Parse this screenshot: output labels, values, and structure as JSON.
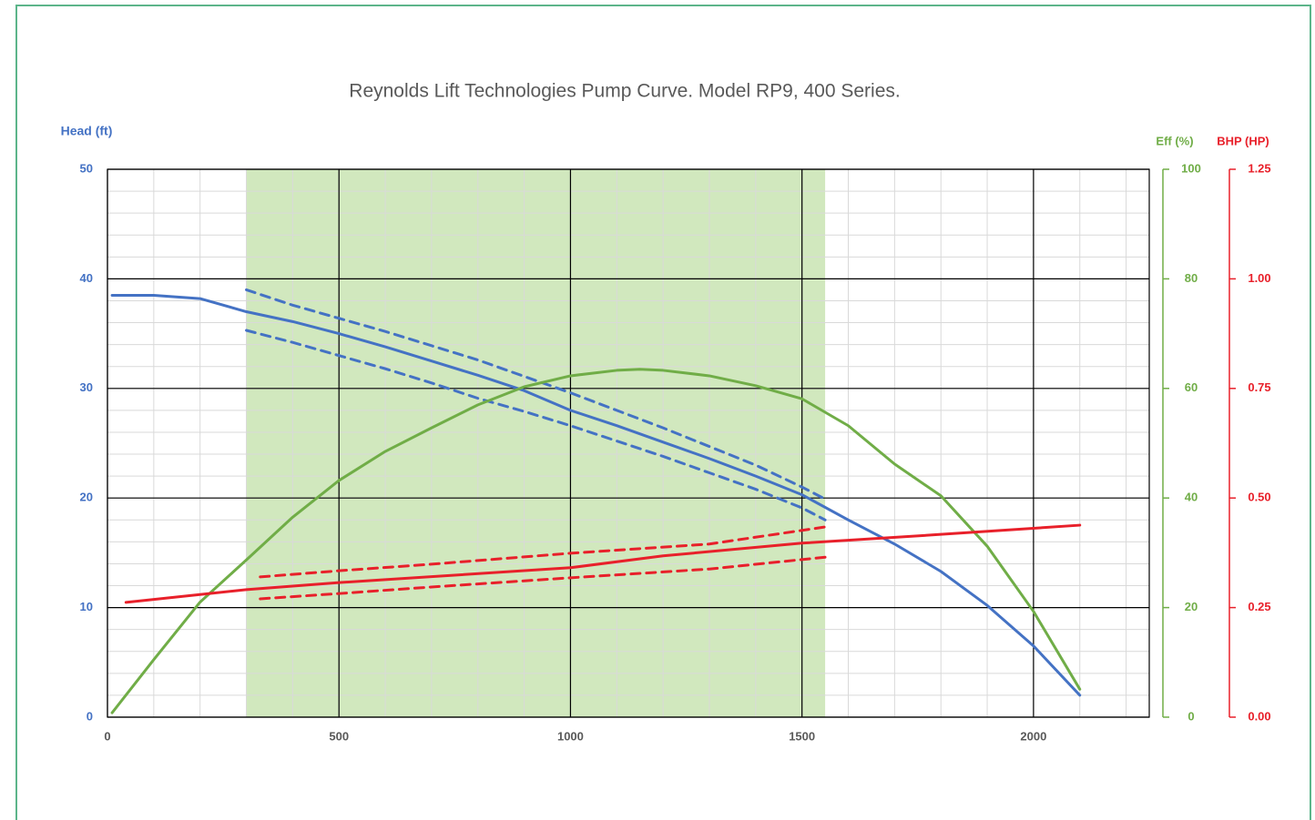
{
  "chart_data": {
    "type": "line",
    "title": "Reynolds Lift Technologies Pump Curve. Model RP9, 400 Series.",
    "y_label": "Head (ft)",
    "y2_label": "Eff (%)",
    "y3_label": "BHP (HP)",
    "xlim": [
      0,
      2250
    ],
    "xticks": [
      0,
      500,
      1000,
      1500,
      2000
    ],
    "ylim": [
      0,
      50
    ],
    "yticks": [
      0,
      10,
      20,
      30,
      40,
      50
    ],
    "y2lim": [
      0,
      100
    ],
    "y2ticks": [
      0,
      20,
      40,
      60,
      80,
      100
    ],
    "y3lim": [
      0,
      1.25
    ],
    "y3ticks": [
      {
        "value": 0,
        "label": "0.00"
      },
      {
        "value": 0.25,
        "label": "0.25"
      },
      {
        "value": 0.5,
        "label": "0.50"
      },
      {
        "value": 0.75,
        "label": "0.75"
      },
      {
        "value": 1,
        "label": "1.00"
      },
      {
        "value": 1.25,
        "label": "1.25"
      }
    ],
    "grid": true,
    "highlight_range": [
      300,
      1550
    ],
    "highlight_color": "#d1e8be",
    "series": [
      {
        "color": "#4472c4",
        "axis": "y",
        "dash": false,
        "x": [
          10,
          100,
          200,
          300,
          400,
          500,
          600,
          700,
          800,
          900,
          1000,
          1100,
          1200,
          1300,
          1400,
          1500,
          1600,
          1700,
          1800,
          1900,
          2000,
          2100
        ],
        "values": [
          38.5,
          38.5,
          38.2,
          37.0,
          36.1,
          35.0,
          33.8,
          32.5,
          31.2,
          29.8,
          28.0,
          26.6,
          25.1,
          23.6,
          22.0,
          20.3,
          18.0,
          15.8,
          13.3,
          10.2,
          6.5,
          2.0
        ]
      },
      {
        "color": "#4472c4",
        "axis": "y",
        "dash": true,
        "x": [
          300,
          400,
          500,
          600,
          700,
          800,
          900,
          1000,
          1100,
          1200,
          1300,
          1400,
          1500,
          1550
        ],
        "values": [
          39.0,
          37.6,
          36.4,
          35.2,
          33.9,
          32.6,
          31.1,
          29.6,
          28.0,
          26.4,
          24.7,
          23.0,
          21.0,
          19.9
        ]
      },
      {
        "color": "#4472c4",
        "axis": "y",
        "dash": true,
        "x": [
          300,
          400,
          500,
          600,
          700,
          800,
          900,
          1000,
          1100,
          1200,
          1300,
          1400,
          1500,
          1550
        ],
        "values": [
          35.3,
          34.2,
          33.0,
          31.8,
          30.5,
          29.1,
          27.9,
          26.6,
          25.2,
          23.8,
          22.3,
          20.8,
          19.1,
          18.0
        ]
      },
      {
        "color": "#70ad47",
        "axis": "y2",
        "dash": false,
        "x": [
          10,
          100,
          200,
          300,
          400,
          500,
          600,
          700,
          800,
          900,
          1000,
          1100,
          1150,
          1200,
          1300,
          1400,
          1500,
          1600,
          1700,
          1800,
          1900,
          2000,
          2100
        ],
        "values": [
          0.8,
          10.5,
          21.0,
          28.7,
          36.5,
          43.2,
          48.5,
          52.8,
          57.0,
          60.3,
          62.3,
          63.3,
          63.5,
          63.3,
          62.3,
          60.5,
          58.1,
          53.2,
          46.2,
          40.4,
          31.2,
          19.3,
          5.1
        ]
      },
      {
        "color": "#e8202a",
        "axis": "y3",
        "dash": false,
        "x": [
          40,
          300,
          500,
          1000,
          1200,
          1500,
          1800,
          2100
        ],
        "values": [
          0.262,
          0.291,
          0.307,
          0.341,
          0.368,
          0.397,
          0.417,
          0.438
        ]
      },
      {
        "color": "#e8202a",
        "axis": "y3",
        "dash": true,
        "x": [
          330,
          500,
          700,
          1000,
          1300,
          1550
        ],
        "values": [
          0.32,
          0.334,
          0.349,
          0.374,
          0.395,
          0.434
        ]
      },
      {
        "color": "#e8202a",
        "axis": "y3",
        "dash": true,
        "x": [
          330,
          500,
          700,
          1000,
          1300,
          1550
        ],
        "values": [
          0.27,
          0.282,
          0.297,
          0.318,
          0.338,
          0.365
        ]
      }
    ]
  }
}
